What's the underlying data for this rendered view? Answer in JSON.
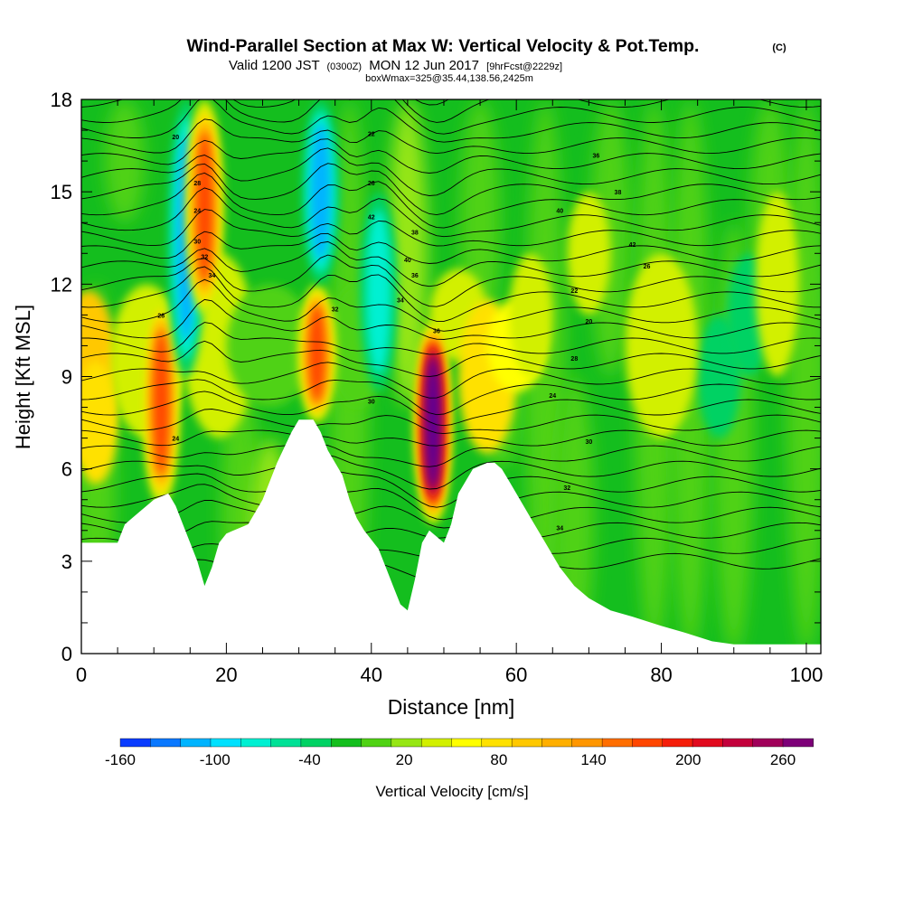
{
  "header": {
    "title": "Wind-Parallel Section at Max W: Vertical Velocity & Pot.Temp.",
    "title_mark": "(C)",
    "valid_prefix": "Valid 1200 JST",
    "valid_utc": "(0300Z)",
    "valid_date": "MON 12 Jun 2017",
    "forecast": "[9hrFcst@2229z]",
    "box_info": "boxWmax=325@35.44,138.56,2425m"
  },
  "chart_data": {
    "type": "heatmap",
    "xlabel": "Distance [nm]",
    "ylabel": "Height [Kft MSL]",
    "xlim": [
      0,
      102
    ],
    "ylim": [
      0,
      18
    ],
    "x_ticks": [
      0,
      20,
      40,
      60,
      80,
      100
    ],
    "y_ticks": [
      0,
      3,
      6,
      9,
      12,
      15,
      18
    ],
    "colorbar": {
      "label": "Vertical Velocity [cm/s]",
      "ticks": [
        -160,
        -100,
        -40,
        20,
        80,
        140,
        200,
        260
      ],
      "min": -180,
      "max": 260,
      "colors": [
        "#0a00f5",
        "#0a3cff",
        "#0a78ff",
        "#00b4ff",
        "#00e1ff",
        "#00f0d2",
        "#00e196",
        "#00d264",
        "#14be1e",
        "#50d214",
        "#96e614",
        "#d2f000",
        "#ffff00",
        "#ffe100",
        "#ffc800",
        "#ffaf00",
        "#ff9600",
        "#ff6e00",
        "#ff4600",
        "#f51e0a",
        "#e10a1e",
        "#c3003c",
        "#a0005a",
        "#7d0078",
        "#5a0096"
      ]
    },
    "terrain": [
      [
        0,
        3.6
      ],
      [
        5,
        3.6
      ],
      [
        6,
        4.2
      ],
      [
        8,
        4.6
      ],
      [
        10,
        5
      ],
      [
        12,
        5.2
      ],
      [
        13,
        4.8
      ],
      [
        14,
        4.2
      ],
      [
        15,
        3.6
      ],
      [
        16,
        3.0
      ],
      [
        17,
        2.2
      ],
      [
        18,
        2.8
      ],
      [
        19,
        3.6
      ],
      [
        20,
        3.9
      ],
      [
        23,
        4.2
      ],
      [
        25,
        5
      ],
      [
        27,
        6.2
      ],
      [
        29,
        7.2
      ],
      [
        30,
        7.6
      ],
      [
        32,
        7.6
      ],
      [
        33,
        7.2
      ],
      [
        34,
        6.6
      ],
      [
        36,
        5.8
      ],
      [
        37,
        5.0
      ],
      [
        38,
        4.4
      ],
      [
        39,
        4.0
      ],
      [
        41,
        3.4
      ],
      [
        42,
        2.8
      ],
      [
        43,
        2.2
      ],
      [
        44,
        1.6
      ],
      [
        45,
        1.4
      ],
      [
        46,
        2.4
      ],
      [
        47,
        3.6
      ],
      [
        48,
        4.0
      ],
      [
        49,
        3.8
      ],
      [
        50,
        3.6
      ],
      [
        51,
        4.2
      ],
      [
        52,
        5.2
      ],
      [
        54,
        6.0
      ],
      [
        56,
        6.2
      ],
      [
        57,
        6.2
      ],
      [
        58,
        6.0
      ],
      [
        59,
        5.6
      ],
      [
        60,
        5.2
      ],
      [
        62,
        4.4
      ],
      [
        64,
        3.6
      ],
      [
        66,
        2.8
      ],
      [
        68,
        2.2
      ],
      [
        70,
        1.8
      ],
      [
        73,
        1.4
      ],
      [
        76,
        1.2
      ],
      [
        80,
        0.9
      ],
      [
        83,
        0.7
      ],
      [
        87,
        0.4
      ],
      [
        90,
        0.3
      ],
      [
        102,
        0.3
      ]
    ],
    "wmax_location": "35.44,138.56,2425m",
    "wmax_value": 325,
    "theta_contour_labels": [
      "28",
      "24",
      "30",
      "32",
      "34",
      "36",
      "38",
      "40",
      "42",
      "26",
      "22",
      "20"
    ],
    "series": [
      {
        "kind": "updraft",
        "x": 11,
        "ymin": 4.8,
        "ymax": 11.5,
        "w": 140
      },
      {
        "kind": "downdraft",
        "x": 14.5,
        "ymin": 9,
        "ymax": 18,
        "w": -140
      },
      {
        "kind": "updraft",
        "x": 17,
        "ymin": 11,
        "ymax": 18,
        "w": 140
      },
      {
        "kind": "updraft",
        "x": 32.5,
        "ymin": 7.5,
        "ymax": 12,
        "w": 140
      },
      {
        "kind": "downdraft",
        "x": 33,
        "ymin": 12,
        "ymax": 18,
        "w": -120
      },
      {
        "kind": "downdraft",
        "x": 41,
        "ymin": 8.5,
        "ymax": 15,
        "w": -100
      },
      {
        "kind": "updraft",
        "x": 48.5,
        "ymin": 4.2,
        "ymax": 10.8,
        "w": 260
      }
    ]
  }
}
